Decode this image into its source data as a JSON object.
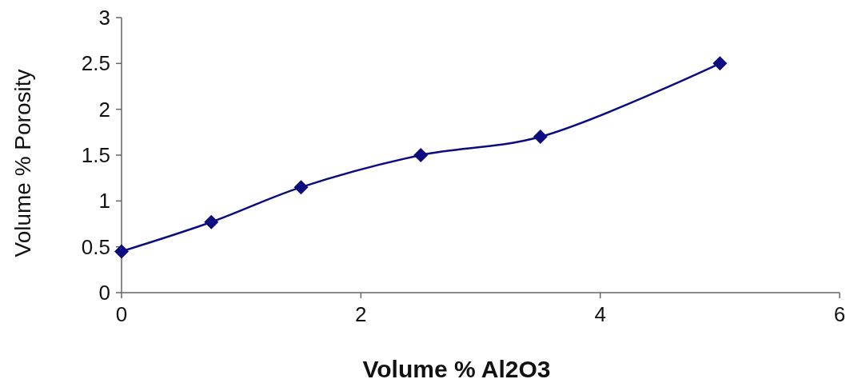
{
  "chart_data": {
    "type": "line",
    "xlabel": "Volume % Al2O3",
    "ylabel": "Volume % Porosity",
    "x": [
      0,
      0.75,
      1.5,
      2.5,
      3.5,
      5
    ],
    "series": [
      {
        "color": "#0c0c80",
        "values": [
          0.45,
          0.77,
          1.15,
          1.5,
          1.7,
          2.5
        ]
      }
    ],
    "xlim": [
      0,
      6
    ],
    "xticks": [
      0,
      2,
      4,
      6
    ],
    "ylim": [
      0,
      3
    ],
    "yticks": [
      0,
      0.5,
      1,
      1.5,
      2,
      2.5,
      3
    ],
    "marker": "diamond",
    "line_style": "solid",
    "grid": false
  }
}
